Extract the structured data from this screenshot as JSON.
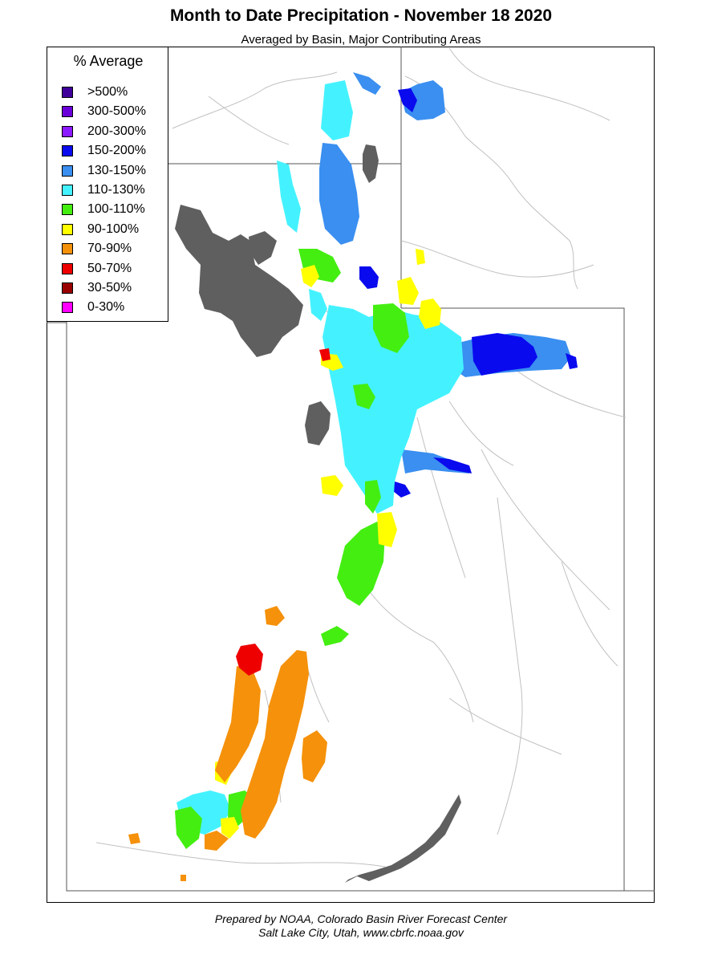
{
  "title": "Month to Date Precipitation - November 18 2020",
  "subtitle": "Averaged by Basin, Major Contributing Areas",
  "legend": {
    "title": "% Average",
    "items": [
      {
        "label": ">500%",
        "color": "#3f0099"
      },
      {
        "label": "300-500%",
        "color": "#6a00d9"
      },
      {
        "label": "200-300%",
        "color": "#8b1aff"
      },
      {
        "label": "150-200%",
        "color": "#0a0aee"
      },
      {
        "label": "130-150%",
        "color": "#3a8ff0"
      },
      {
        "label": "110-130%",
        "color": "#44f2ff"
      },
      {
        "label": "100-110%",
        "color": "#44ee11"
      },
      {
        "label": "90-100%",
        "color": "#ffff00"
      },
      {
        "label": "70-90%",
        "color": "#f5910a"
      },
      {
        "label": "50-70%",
        "color": "#ee0000"
      },
      {
        "label": "30-50%",
        "color": "#990000"
      },
      {
        "label": "0-30%",
        "color": "#ff00ff"
      }
    ]
  },
  "colors": {
    "lake": "#5f5f5f",
    "river": "#c0c0c0",
    "border": "#555555"
  },
  "footer": {
    "line1": "Prepared by NOAA, Colorado Basin River Forecast Center",
    "line2": "Salt Lake City, Utah, www.cbrfc.noaa.gov"
  }
}
